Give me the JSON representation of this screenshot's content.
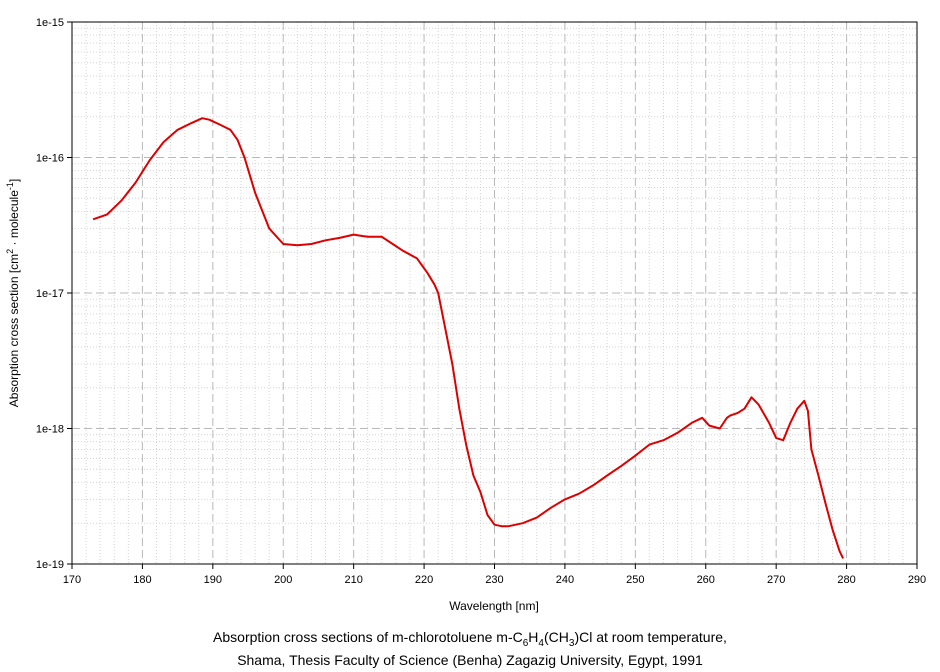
{
  "chart_data": {
    "type": "line",
    "title": "",
    "xlabel": "Wavelength [nm]",
    "ylabel": {
      "prefix": "Absorption cross section [cm",
      "exp1": "2",
      "middle": " · molecule",
      "exp2": "-1",
      "suffix": "]"
    },
    "xlim": [
      170,
      290
    ],
    "ylim": [
      1e-19,
      1e-15
    ],
    "yscale": "log",
    "grid": true,
    "x_ticks": [
      "170",
      "180",
      "190",
      "200",
      "210",
      "220",
      "230",
      "240",
      "250",
      "260",
      "270",
      "280",
      "290"
    ],
    "y_ticks": [
      "1e-19",
      "1e-18",
      "1e-17",
      "1e-16",
      "1e-15"
    ],
    "line_color": "#dd0000",
    "series": [
      {
        "x": [
          173,
          175,
          177,
          179,
          181,
          183,
          185,
          187,
          188.5,
          189.5,
          191,
          192.5,
          193.5,
          194.5,
          196,
          198,
          200,
          202,
          204,
          206,
          208,
          210,
          211,
          212,
          214,
          215,
          217,
          219,
          220.5,
          221.5,
          222,
          223,
          224,
          225,
          226,
          227,
          228,
          229,
          230,
          231,
          232,
          234,
          236,
          238,
          240,
          242,
          244,
          246,
          248,
          250,
          252,
          254,
          256,
          258,
          259.5,
          260.5,
          262,
          263,
          263.5,
          264.5,
          265.5,
          266.5,
          267.5,
          269,
          270,
          271,
          272,
          273,
          274,
          274.5,
          275,
          276,
          277,
          278,
          279,
          279.5
        ],
        "y": [
          3.5e-17,
          3.8e-17,
          4.8e-17,
          6.5e-17,
          9.5e-17,
          1.3e-16,
          1.6e-16,
          1.8e-16,
          1.95e-16,
          1.9e-16,
          1.75e-16,
          1.6e-16,
          1.35e-16,
          1e-16,
          5.5e-17,
          3e-17,
          2.3e-17,
          2.25e-17,
          2.3e-17,
          2.45e-17,
          2.55e-17,
          2.7e-17,
          2.65e-17,
          2.6e-17,
          2.6e-17,
          2.4e-17,
          2.05e-17,
          1.8e-17,
          1.4e-17,
          1.15e-17,
          1e-17,
          5.5e-18,
          3e-18,
          1.4e-18,
          7.5e-19,
          4.5e-19,
          3.4e-19,
          2.3e-19,
          1.95e-19,
          1.9e-19,
          1.9e-19,
          2e-19,
          2.2e-19,
          2.6e-19,
          3e-19,
          3.3e-19,
          3.8e-19,
          4.5e-19,
          5.3e-19,
          6.3e-19,
          7.6e-19,
          8.2e-19,
          9.3e-19,
          1.1e-18,
          1.2e-18,
          1.05e-18,
          1e-18,
          1.2e-18,
          1.25e-18,
          1.3e-18,
          1.4e-18,
          1.7e-18,
          1.5e-18,
          1.1e-18,
          8.5e-19,
          8.2e-19,
          1.1e-18,
          1.4e-18,
          1.6e-18,
          1.35e-18,
          7e-19,
          4.5e-19,
          2.8e-19,
          1.8e-19,
          1.25e-19,
          1.1e-19
        ]
      }
    ]
  },
  "caption": {
    "line1_prefix": "Absorption cross sections of m-chlorotoluene m-C",
    "sub1": "6",
    "mid1": "H",
    "sub2": "4",
    "mid2": "(CH",
    "sub3": "3",
    "line1_suffix": ")Cl at room temperature,",
    "line2": "Shama, Thesis Faculty of Science (Benha) Zagazig University, Egypt, 1991"
  }
}
